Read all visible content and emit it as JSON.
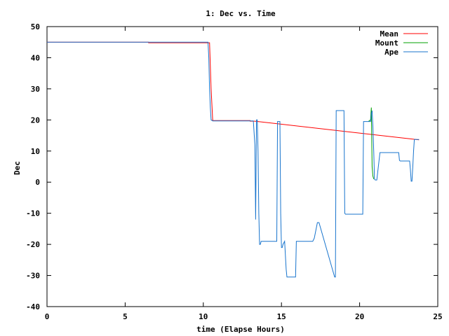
{
  "chart_data": {
    "type": "line",
    "title": "1: Dec vs. Time",
    "xlabel": "time (Elapse Hours)",
    "ylabel": "Dec",
    "xlim": [
      0,
      25
    ],
    "ylim": [
      -40,
      50
    ],
    "x_ticks": [
      0,
      5,
      10,
      15,
      20,
      25
    ],
    "y_ticks": [
      -40,
      -30,
      -20,
      -10,
      0,
      10,
      20,
      30,
      40,
      50
    ],
    "x_tick_labels": [
      "0",
      "5",
      "10",
      "15",
      "20",
      "25"
    ],
    "y_tick_labels": [
      "-40",
      "-30",
      "-20",
      "-10",
      "0",
      "10",
      "20",
      "30",
      "40",
      "50"
    ],
    "grid": false,
    "legend_position": "top-right",
    "series": [
      {
        "name": "Mean",
        "color": "#ff0000",
        "x": [
          0,
          6.5,
          6.5,
          10.4,
          10.5,
          10.6,
          13.0,
          13.0,
          13.3,
          23.8
        ],
        "y": [
          45,
          45,
          44.8,
          44.8,
          30,
          19.8,
          19.8,
          19.6,
          19.6,
          13.6
        ]
      },
      {
        "name": "Mount",
        "color": "#00a000",
        "x": [
          20.55,
          20.7,
          20.75,
          20.8,
          20.85,
          20.9
        ],
        "y": [
          19.5,
          20,
          24,
          5,
          2,
          1
        ]
      },
      {
        "name": "Ape",
        "color": "#1874cd",
        "x": [
          0,
          10.3,
          10.35,
          10.4,
          10.45,
          10.5,
          10.6,
          13.2,
          13.3,
          13.35,
          13.4,
          13.45,
          13.5,
          13.55,
          13.6,
          13.65,
          13.7,
          13.75,
          13.8,
          13.9,
          14.0,
          14.1,
          14.7,
          14.75,
          14.8,
          14.9,
          14.95,
          15.0,
          15.05,
          15.1,
          15.2,
          15.3,
          15.35,
          15.4,
          15.45,
          15.5,
          15.9,
          15.95,
          16.0,
          16.1,
          17.0,
          17.1,
          17.3,
          17.4,
          18.4,
          18.45,
          18.5,
          19.0,
          19.05,
          19.1,
          20.2,
          20.25,
          20.3,
          20.7,
          20.75,
          20.8,
          20.85,
          20.9,
          20.95,
          21.0,
          21.1,
          21.3,
          21.35,
          21.4,
          22.5,
          22.55,
          22.6,
          23.2,
          23.25,
          23.3,
          23.35,
          23.4,
          23.45,
          23.5,
          23.55,
          23.6,
          23.8
        ],
        "y": [
          45,
          45,
          40,
          30,
          24,
          20,
          19.7,
          19.7,
          12,
          -12,
          20,
          20,
          10,
          -10,
          -20,
          -20,
          -19,
          -19,
          -19,
          -19,
          -19,
          -19,
          -19,
          19.5,
          19.5,
          19.5,
          -10,
          -21,
          -21,
          -20,
          -19,
          -28,
          -30.5,
          -30.5,
          -30.5,
          -30.5,
          -30.5,
          -19,
          -19,
          -19,
          -19,
          -18,
          -13,
          -13,
          -30.5,
          -30.5,
          23,
          23,
          -10,
          -10.3,
          -10.3,
          19.5,
          19.5,
          19.5,
          22,
          23,
          18,
          10,
          1,
          0.7,
          0.7,
          9.5,
          9.5,
          9.5,
          9.5,
          7,
          6.8,
          6.8,
          4,
          0.3,
          0.3,
          5,
          10,
          13.7,
          13.7,
          13.7,
          13.7
        ]
      }
    ]
  }
}
